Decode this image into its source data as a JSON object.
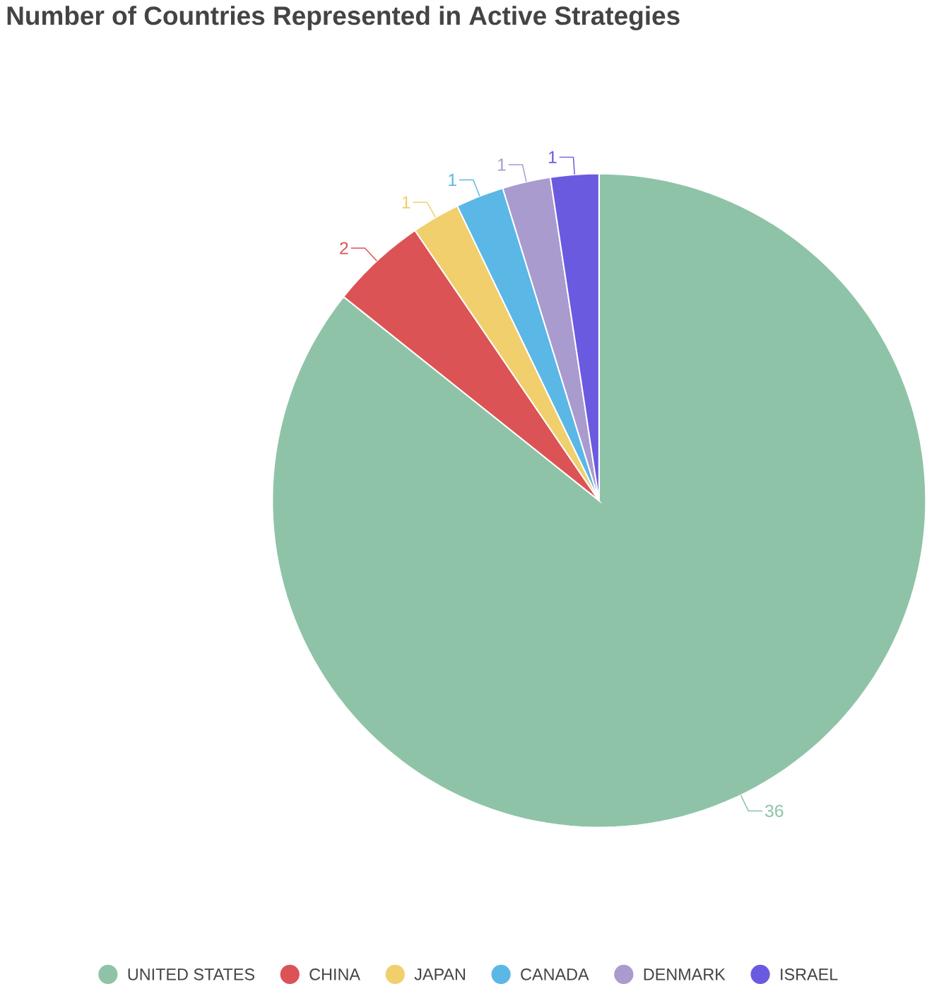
{
  "chart_data": {
    "type": "pie",
    "title": "Number of Countries Represented in Active Strategies",
    "categories": [
      "UNITED STATES",
      "CHINA",
      "JAPAN",
      "CANADA",
      "DENMARK",
      "ISRAEL"
    ],
    "values": [
      36,
      2,
      1,
      1,
      1,
      1
    ],
    "colors": [
      "#8ec3a7",
      "#dc5356",
      "#f0cf6c",
      "#5bb7e6",
      "#a99bce",
      "#6a5ae0"
    ],
    "data_labels": true,
    "legend": "bottom"
  }
}
